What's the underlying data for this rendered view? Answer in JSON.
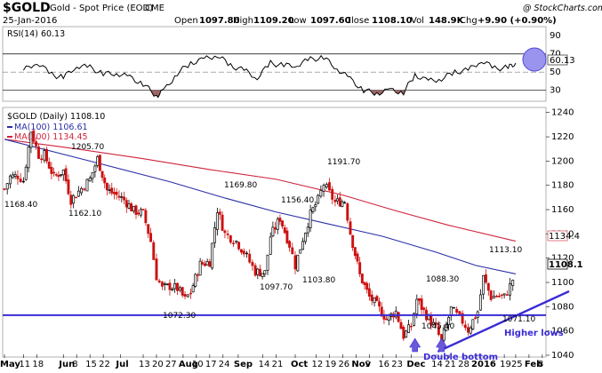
{
  "header": {
    "symbol": "$GOLD",
    "name": "Gold - Spot Price (EOD)",
    "exchange": "CME",
    "date": "25-Jan-2016",
    "open_label": "Open",
    "open": "1097.80",
    "high_label": "High",
    "high": "1109.20",
    "low_label": "Low",
    "low": "1097.60",
    "close_label": "Close",
    "close": "1108.10",
    "volume": "148.9K",
    "chg_label": "Chg",
    "chg": "+9.90 (+0.90%)",
    "credit": "@ StockCharts.com"
  },
  "colors": {
    "ma100": "#2b2fa6",
    "ma200": "#d0243c",
    "rsi_line": "#000000",
    "rsi_fill": "#8b4a4a",
    "trend": "#3a2bd6",
    "candle_up": "#000000",
    "candle_down": "#cc1010",
    "highlight": "#9a94ee"
  },
  "chart_data": [
    {
      "type": "line",
      "title": "RSI(14) 60.13",
      "series": [
        {
          "name": "RSI(14)",
          "last": 60.13
        }
      ],
      "y_ticks": [
        30,
        50,
        70,
        90
      ],
      "levels": [
        30,
        70
      ],
      "ylim": [
        18,
        100
      ],
      "x_start": "2015-05-11",
      "x_end": "2016-02-09",
      "points": [
        [
          "2015-05-11",
          52
        ],
        [
          "2015-05-18",
          61
        ],
        [
          "2015-05-26",
          47
        ],
        [
          "2015-06-01",
          44
        ],
        [
          "2015-06-08",
          57
        ],
        [
          "2015-06-15",
          55
        ],
        [
          "2015-06-22",
          48
        ],
        [
          "2015-06-29",
          49
        ],
        [
          "2015-07-06",
          44
        ],
        [
          "2015-07-13",
          37
        ],
        [
          "2015-07-20",
          24
        ],
        [
          "2015-07-24",
          30
        ],
        [
          "2015-07-31",
          49
        ],
        [
          "2015-08-07",
          60
        ],
        [
          "2015-08-14",
          64
        ],
        [
          "2015-08-21",
          69
        ],
        [
          "2015-08-28",
          57
        ],
        [
          "2015-09-04",
          52
        ],
        [
          "2015-09-11",
          44
        ],
        [
          "2015-09-18",
          60
        ],
        [
          "2015-09-25",
          57
        ],
        [
          "2015-10-02",
          58
        ],
        [
          "2015-10-09",
          64
        ],
        [
          "2015-10-16",
          66
        ],
        [
          "2015-10-23",
          54
        ],
        [
          "2015-10-30",
          42
        ],
        [
          "2015-11-06",
          30
        ],
        [
          "2015-11-13",
          27
        ],
        [
          "2015-11-20",
          30
        ],
        [
          "2015-11-27",
          28
        ],
        [
          "2015-12-03",
          47
        ],
        [
          "2015-12-10",
          40
        ],
        [
          "2015-12-17",
          43
        ],
        [
          "2015-12-24",
          50
        ],
        [
          "2015-12-31",
          52
        ],
        [
          "2016-01-07",
          63
        ],
        [
          "2016-01-14",
          54
        ],
        [
          "2016-01-21",
          55
        ],
        [
          "2016-01-25",
          60
        ]
      ]
    },
    {
      "type": "candlestick",
      "title": "$GOLD (Daily) 1108.10",
      "ylim": [
        1040,
        1242
      ],
      "y_ticks": [
        1040,
        1060,
        1080,
        1100,
        1120,
        1140,
        1160,
        1180,
        1200,
        1220,
        1240
      ],
      "x_ticks": [
        {
          "label": "May",
          "date": "2015-05-01"
        },
        {
          "label": "11",
          "date": "2015-05-11"
        },
        {
          "label": "18",
          "date": "2015-05-18"
        },
        {
          "label": "Jun",
          "date": "2015-06-01"
        },
        {
          "label": "8",
          "date": "2015-06-08"
        },
        {
          "label": "15",
          "date": "2015-06-15"
        },
        {
          "label": "22",
          "date": "2015-06-22"
        },
        {
          "label": "Jul",
          "date": "2015-07-01"
        },
        {
          "label": "13",
          "date": "2015-07-13"
        },
        {
          "label": "20",
          "date": "2015-07-20"
        },
        {
          "label": "27",
          "date": "2015-07-27"
        },
        {
          "label": "Aug",
          "date": "2015-08-03"
        },
        {
          "label": "10",
          "date": "2015-08-10"
        },
        {
          "label": "17",
          "date": "2015-08-17"
        },
        {
          "label": "24",
          "date": "2015-08-24"
        },
        {
          "label": "Sep",
          "date": "2015-09-01"
        },
        {
          "label": "14",
          "date": "2015-09-14"
        },
        {
          "label": "21",
          "date": "2015-09-21"
        },
        {
          "label": "Oct",
          "date": "2015-10-01"
        },
        {
          "label": "12",
          "date": "2015-10-12"
        },
        {
          "label": "19",
          "date": "2015-10-19"
        },
        {
          "label": "26",
          "date": "2015-10-26"
        },
        {
          "label": "Nov",
          "date": "2015-11-02"
        },
        {
          "label": "9",
          "date": "2015-11-09"
        },
        {
          "label": "16",
          "date": "2015-11-16"
        },
        {
          "label": "23",
          "date": "2015-11-23"
        },
        {
          "label": "Dec",
          "date": "2015-12-01"
        },
        {
          "label": "14",
          "date": "2015-12-14"
        },
        {
          "label": "21",
          "date": "2015-12-21"
        },
        {
          "label": "28",
          "date": "2015-12-28"
        },
        {
          "label": "2016",
          "date": "2016-01-04"
        },
        {
          "label": "19",
          "date": "2016-01-19"
        },
        {
          "label": "25",
          "date": "2016-01-25"
        },
        {
          "label": "Feb",
          "date": "2016-02-01"
        },
        {
          "label": "8",
          "date": "2016-02-08"
        }
      ],
      "series": [
        {
          "name": "MA(100) 1106.61",
          "type": "line",
          "points": [
            [
              "2015-05-01",
              1218
            ],
            [
              "2015-06-15",
              1200
            ],
            [
              "2015-07-27",
              1183
            ],
            [
              "2015-08-24",
              1170
            ],
            [
              "2015-09-21",
              1158
            ],
            [
              "2015-10-19",
              1148
            ],
            [
              "2015-11-16",
              1138
            ],
            [
              "2015-12-14",
              1125
            ],
            [
              "2016-01-04",
              1114
            ],
            [
              "2016-01-25",
              1107
            ]
          ]
        },
        {
          "name": "MA(200) 1134.45",
          "type": "line",
          "points": [
            [
              "2015-05-01",
              1218
            ],
            [
              "2015-06-08",
              1210
            ],
            [
              "2015-07-13",
              1202
            ],
            [
              "2015-08-17",
              1193
            ],
            [
              "2015-09-21",
              1185
            ],
            [
              "2015-10-26",
              1172
            ],
            [
              "2015-11-23",
              1159
            ],
            [
              "2015-12-21",
              1147
            ],
            [
              "2016-01-25",
              1134
            ]
          ]
        },
        {
          "name": "close",
          "type": "candle",
          "points": [
            [
              "2015-05-01",
              1177
            ],
            [
              "2015-05-04",
              1187
            ],
            [
              "2015-05-08",
              1188
            ],
            [
              "2015-05-11",
              1184
            ],
            [
              "2015-05-15",
              1225
            ],
            [
              "2015-05-19",
              1205
            ],
            [
              "2015-05-22",
              1205
            ],
            [
              "2015-05-27",
              1187
            ],
            [
              "2015-06-01",
              1192
            ],
            [
              "2015-06-05",
              1168
            ],
            [
              "2015-06-09",
              1175
            ],
            [
              "2015-06-15",
              1185
            ],
            [
              "2015-06-19",
              1202
            ],
            [
              "2015-06-24",
              1176
            ],
            [
              "2015-06-29",
              1172
            ],
            [
              "2015-07-03",
              1168
            ],
            [
              "2015-07-08",
              1159
            ],
            [
              "2015-07-13",
              1157
            ],
            [
              "2015-07-17",
              1134
            ],
            [
              "2015-07-20",
              1105
            ],
            [
              "2015-07-23",
              1095
            ],
            [
              "2015-07-27",
              1097
            ],
            [
              "2015-07-31",
              1095
            ],
            [
              "2015-08-04",
              1086
            ],
            [
              "2015-08-07",
              1092
            ],
            [
              "2015-08-12",
              1115
            ],
            [
              "2015-08-17",
              1117
            ],
            [
              "2015-08-21",
              1160
            ],
            [
              "2015-08-25",
              1140
            ],
            [
              "2015-08-31",
              1134
            ],
            [
              "2015-09-04",
              1125
            ],
            [
              "2015-09-10",
              1109
            ],
            [
              "2015-09-15",
              1108
            ],
            [
              "2015-09-18",
              1138
            ],
            [
              "2015-09-23",
              1153
            ],
            [
              "2015-09-28",
              1131
            ],
            [
              "2015-10-01",
              1114
            ],
            [
              "2015-10-05",
              1136
            ],
            [
              "2015-10-09",
              1156
            ],
            [
              "2015-10-13",
              1168
            ],
            [
              "2015-10-16",
              1181
            ],
            [
              "2015-10-22",
              1166
            ],
            [
              "2015-10-27",
              1167
            ],
            [
              "2015-10-30",
              1141
            ],
            [
              "2015-11-04",
              1106
            ],
            [
              "2015-11-09",
              1088
            ],
            [
              "2015-11-13",
              1081
            ],
            [
              "2015-11-18",
              1070
            ],
            [
              "2015-11-23",
              1076
            ],
            [
              "2015-11-27",
              1056
            ],
            [
              "2015-12-01",
              1064
            ],
            [
              "2015-12-04",
              1086
            ],
            [
              "2015-12-09",
              1073
            ],
            [
              "2015-12-14",
              1062
            ],
            [
              "2015-12-17",
              1051
            ],
            [
              "2015-12-22",
              1078
            ],
            [
              "2015-12-28",
              1068
            ],
            [
              "2015-12-31",
              1061
            ],
            [
              "2016-01-05",
              1076
            ],
            [
              "2016-01-08",
              1104
            ],
            [
              "2016-01-12",
              1088
            ],
            [
              "2016-01-15",
              1089
            ],
            [
              "2016-01-19",
              1088
            ],
            [
              "2016-01-22",
              1097
            ],
            [
              "2016-01-25",
              1108
            ]
          ]
        }
      ],
      "annotations": [
        {
          "text": "1168.40"
        },
        {
          "text": "1205.70"
        },
        {
          "text": "1162.10"
        },
        {
          "text": "1072.30"
        },
        {
          "text": "1169.80"
        },
        {
          "text": "1097.70"
        },
        {
          "text": "1156.40"
        },
        {
          "text": "1103.80"
        },
        {
          "text": "1191.70"
        },
        {
          "text": "1088.30"
        },
        {
          "text": "1045.40"
        },
        {
          "text": "1113.10"
        },
        {
          "text": "1071.10"
        }
      ],
      "notes": [
        "Double bottom",
        "Higher lows"
      ],
      "price_tags": [
        "1134.4",
        "1108.1"
      ],
      "support_level": 1073.0,
      "trendline": [
        [
          "2015-12-15",
          1043
        ],
        [
          "2016-02-09",
          1100
        ]
      ]
    }
  ]
}
